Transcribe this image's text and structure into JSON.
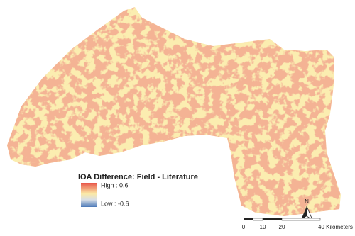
{
  "legend": {
    "title": "IOA Difference: Field - Literature",
    "high": "High : 0.6",
    "low": "Low : -0.6"
  },
  "north_arrow": {
    "label": "N"
  },
  "scale_bar": {
    "labels": [
      "0",
      "10",
      "20",
      "40 Kilometers"
    ]
  }
}
